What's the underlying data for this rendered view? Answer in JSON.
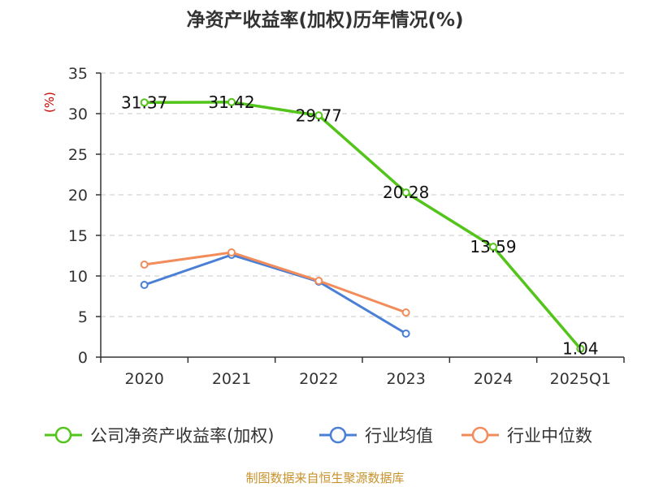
{
  "chart_data": {
    "type": "line",
    "title": "净资产收益率(加权)历年情况(%)",
    "ylabel": "(%)",
    "categories": [
      "2020",
      "2021",
      "2022",
      "2023",
      "2024",
      "2025Q1"
    ],
    "ylim": [
      0,
      35
    ],
    "yticks": [
      "0",
      "5",
      "10",
      "15",
      "20",
      "25",
      "30",
      "35"
    ],
    "grid": true,
    "legend_position": "bottom",
    "series": [
      {
        "name": "公司净资产收益率(加权)",
        "color": "#52c41a",
        "values": [
          31.37,
          31.42,
          29.77,
          20.28,
          13.59,
          1.04
        ],
        "labels": [
          "31.37",
          "31.42",
          "29.77",
          "20.28",
          "13.59",
          "1.04"
        ]
      },
      {
        "name": "行业均值",
        "color": "#4a7fd6",
        "values": [
          8.9,
          12.6,
          9.3,
          2.9,
          null,
          null
        ]
      },
      {
        "name": "行业中位数",
        "color": "#f28c5b",
        "values": [
          11.4,
          12.9,
          9.4,
          5.5,
          null,
          null
        ]
      }
    ]
  },
  "source": "制图数据来自恒生聚源数据库"
}
